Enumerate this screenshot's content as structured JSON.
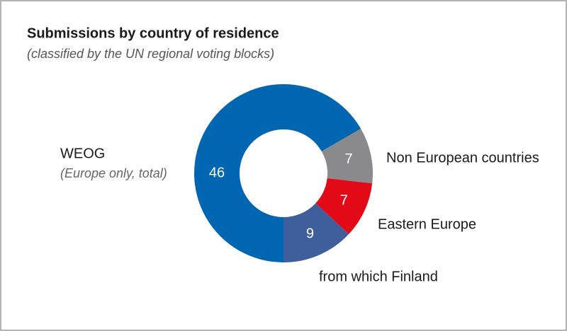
{
  "chart_data": {
    "type": "pie",
    "title": "Submissions by country of residence",
    "subtitle": "(classified by the UN regional voting blocks)",
    "categories": [
      "WEOG",
      "Non European countries",
      "Eastern Europe",
      "from which Finland"
    ],
    "values": [
      46,
      7,
      7,
      9
    ],
    "colors": [
      "#0066b1",
      "#8a8a8c",
      "#e20a16",
      "#3f5e9c"
    ],
    "annotation": "(Europe only, total)",
    "donut": true
  }
}
